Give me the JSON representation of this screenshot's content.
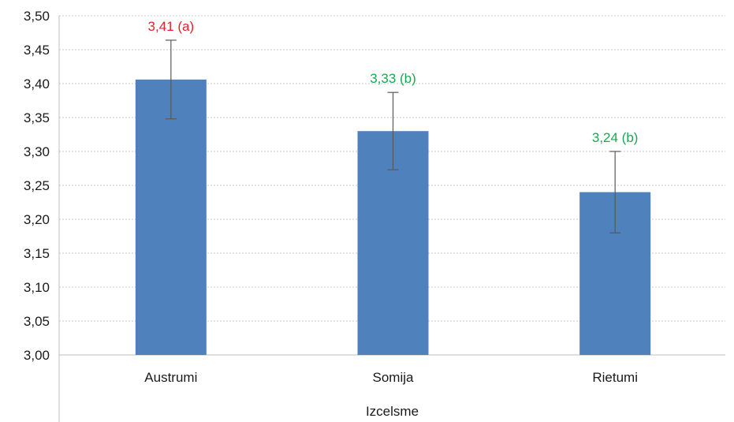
{
  "chart_data": {
    "type": "bar",
    "title": "",
    "xlabel": "",
    "ylabel": "",
    "group_label": "Izcelsme",
    "categories": [
      "Austrumi",
      "Somija",
      "Rietumi"
    ],
    "values": [
      3.406,
      3.33,
      3.24
    ],
    "error_low": [
      3.348,
      3.273,
      3.18
    ],
    "error_high": [
      3.464,
      3.387,
      3.3
    ],
    "data_labels": [
      "3,41 (a)",
      "3,33 (b)",
      "3,24 (b)"
    ],
    "data_label_colors": [
      "#e8202a",
      "#1aa851",
      "#1aa851"
    ],
    "ylim": [
      3.0,
      3.5
    ],
    "yticks": [
      3.0,
      3.05,
      3.1,
      3.15,
      3.2,
      3.25,
      3.3,
      3.35,
      3.4,
      3.45,
      3.5
    ],
    "ytick_labels": [
      "3,00",
      "3,05",
      "3,10",
      "3,15",
      "3,20",
      "3,25",
      "3,30",
      "3,35",
      "3,40",
      "3,45",
      "3,50"
    ],
    "grid": true,
    "bar_color": "#4f81bd",
    "error_bar_color": "#595959",
    "grid_color": "#c8c8c8"
  }
}
